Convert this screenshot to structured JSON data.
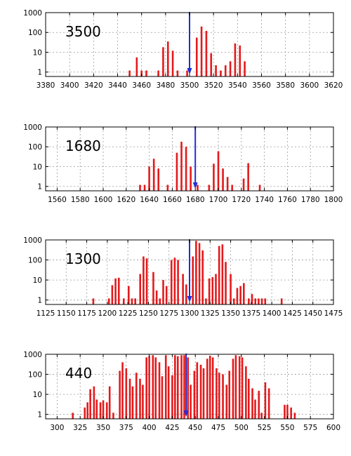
{
  "colors": {
    "bars": "#e31a1c",
    "marker": "#1f2fd6",
    "grid": "#9a9a9a"
  },
  "chart_data": [
    {
      "type": "bar",
      "label": "3500",
      "log_y": true,
      "ylim": [
        0.6,
        1000
      ],
      "yticks": [
        1,
        10,
        100,
        1000
      ],
      "ytick_labels": [
        "1",
        "10",
        "100",
        "1000"
      ],
      "xlim": [
        3380,
        3620
      ],
      "xticks": [
        3380,
        3400,
        3420,
        3440,
        3460,
        3480,
        3500,
        3520,
        3540,
        3560,
        3580,
        3600,
        3620
      ],
      "xtick_labels": [
        "3380",
        "3400",
        "3420",
        "3440",
        "3460",
        "3480",
        "3500",
        "3520",
        "3540",
        "3560",
        "3580",
        "3600",
        "3620"
      ],
      "marker_x": 3500,
      "x": [
        3450,
        3456,
        3460,
        3464,
        3474,
        3478,
        3482,
        3486,
        3490,
        3498,
        3506,
        3510,
        3514,
        3518,
        3522,
        3526,
        3530,
        3534,
        3538,
        3542,
        3546
      ],
      "values": [
        1.2,
        5.5,
        1.2,
        1.2,
        1.2,
        18,
        35,
        12,
        1.2,
        1.2,
        55,
        200,
        120,
        9,
        2.2,
        1.2,
        2.2,
        3.5,
        28,
        22,
        3.5
      ]
    },
    {
      "type": "bar",
      "label": "1680",
      "log_y": true,
      "ylim": [
        0.6,
        1000
      ],
      "yticks": [
        1,
        10,
        100,
        1000
      ],
      "ytick_labels": [
        "1",
        "10",
        "100",
        "1000"
      ],
      "xlim": [
        1550,
        1800
      ],
      "xticks": [
        1560,
        1580,
        1600,
        1620,
        1640,
        1660,
        1680,
        1700,
        1720,
        1740,
        1760,
        1780,
        1800
      ],
      "xtick_labels": [
        "1560",
        "1580",
        "1600",
        "1620",
        "1640",
        "1660",
        "1680",
        "1700",
        "1720",
        "1740",
        "1760",
        "1780",
        "1800"
      ],
      "marker_x": 1680,
      "x": [
        1632,
        1636,
        1640,
        1644,
        1648,
        1656,
        1664,
        1668,
        1672,
        1676,
        1682,
        1692,
        1696,
        1700,
        1704,
        1708,
        1712,
        1722,
        1726,
        1736
      ],
      "values": [
        1.2,
        1.2,
        10,
        25,
        8,
        1.2,
        50,
        180,
        100,
        10,
        1.2,
        1.2,
        14,
        60,
        8,
        3,
        1.2,
        2.5,
        15,
        1.2
      ]
    },
    {
      "type": "bar",
      "label": "1300",
      "log_y": true,
      "ylim": [
        0.6,
        1000
      ],
      "yticks": [
        1,
        10,
        100,
        1000
      ],
      "ytick_labels": [
        "1",
        "10",
        "100",
        "1000"
      ],
      "xlim": [
        1125,
        1475
      ],
      "xticks": [
        1125,
        1150,
        1175,
        1200,
        1225,
        1250,
        1275,
        1300,
        1325,
        1350,
        1375,
        1400,
        1425,
        1450,
        1475
      ],
      "xtick_labels": [
        "1125",
        "1150",
        "1175",
        "1200",
        "1225",
        "1250",
        "1275",
        "1300",
        "1325",
        "1350",
        "1375",
        "1400",
        "1425",
        "1450",
        "1475"
      ],
      "marker_x": 1300,
      "x": [
        1183,
        1202,
        1206,
        1210,
        1214,
        1220,
        1226,
        1230,
        1234,
        1240,
        1244,
        1248,
        1256,
        1260,
        1264,
        1268,
        1272,
        1278,
        1282,
        1286,
        1292,
        1296,
        1304,
        1308,
        1312,
        1316,
        1320,
        1324,
        1328,
        1332,
        1336,
        1340,
        1344,
        1350,
        1354,
        1358,
        1362,
        1366,
        1372,
        1376,
        1380,
        1384,
        1388,
        1392,
        1412
      ],
      "values": [
        1.2,
        1.2,
        5.5,
        12,
        13,
        1.2,
        5,
        1.2,
        1.2,
        20,
        150,
        120,
        25,
        3,
        1.2,
        10,
        5,
        100,
        130,
        100,
        20,
        6,
        150,
        900,
        700,
        300,
        1.2,
        12,
        14,
        20,
        500,
        600,
        80,
        20,
        1.2,
        4,
        5,
        7,
        1.2,
        2,
        1.2,
        1.2,
        1.2,
        1.2,
        1.2
      ]
    },
    {
      "type": "bar",
      "label": "440",
      "log_y": true,
      "ylim": [
        0.6,
        1000
      ],
      "yticks": [
        1,
        10,
        100,
        1000
      ],
      "ytick_labels": [
        "1",
        "10",
        "100",
        "1000"
      ],
      "xlim": [
        287.5,
        600
      ],
      "xticks": [
        300,
        325,
        350,
        375,
        400,
        425,
        450,
        475,
        500,
        525,
        550,
        575,
        600
      ],
      "xtick_labels": [
        "300",
        "325",
        "350",
        "375",
        "400",
        "425",
        "450",
        "475",
        "500",
        "525",
        "550",
        "575",
        "600"
      ],
      "marker_x": 440,
      "x": [
        317,
        330,
        333,
        336,
        340,
        343,
        347,
        350,
        354,
        357,
        361,
        368,
        371,
        375,
        379,
        382,
        386,
        390,
        393,
        397,
        400,
        404,
        407,
        411,
        414,
        418,
        421,
        425,
        428,
        431,
        435,
        438,
        442,
        445,
        449,
        452,
        456,
        459,
        463,
        466,
        469,
        473,
        476,
        480,
        484,
        487,
        491,
        494,
        498,
        501,
        505,
        508,
        512,
        515,
        519,
        522,
        526,
        530,
        547,
        550,
        554,
        558
      ],
      "values": [
        1.2,
        2.2,
        4,
        18,
        25,
        5.5,
        4,
        5,
        4,
        25,
        1.2,
        150,
        400,
        200,
        60,
        25,
        120,
        60,
        30,
        700,
        800,
        900,
        700,
        400,
        80,
        900,
        250,
        90,
        900,
        800,
        900,
        900,
        700,
        30,
        150,
        400,
        300,
        200,
        600,
        850,
        700,
        200,
        120,
        100,
        30,
        150,
        600,
        900,
        800,
        700,
        250,
        60,
        20,
        5.5,
        15,
        1.2,
        40,
        20,
        3,
        3,
        2.2,
        1.2
      ]
    }
  ]
}
